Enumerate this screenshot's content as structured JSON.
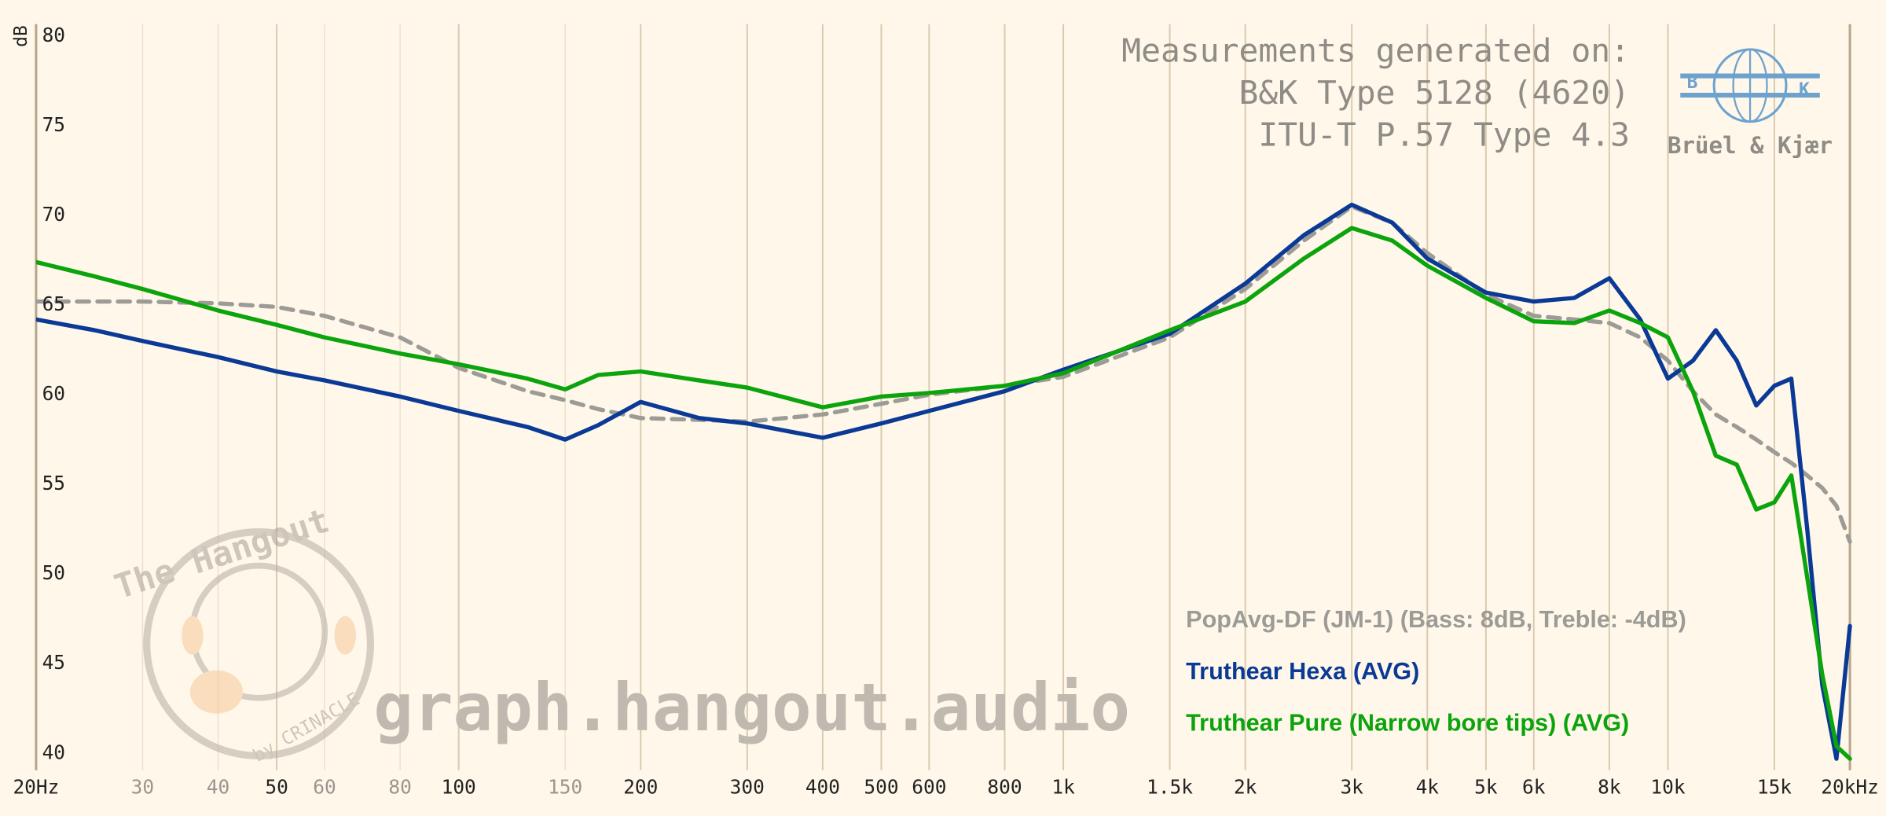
{
  "chart_data": {
    "type": "line",
    "y_label": "dB",
    "x_log": true,
    "xlim": [
      20,
      20000
    ],
    "ylim": [
      40,
      80
    ],
    "yticks": [
      40,
      45,
      50,
      55,
      60,
      65,
      70,
      75,
      80
    ],
    "xticks": [
      {
        "value": 20,
        "label": "20Hz"
      },
      50,
      100,
      200,
      300,
      400,
      500,
      600,
      800,
      {
        "value": 1000,
        "label": "1k"
      },
      {
        "value": 1500,
        "label": "1.5k"
      },
      {
        "value": 2000,
        "label": "2k"
      },
      {
        "value": 3000,
        "label": "3k"
      },
      {
        "value": 4000,
        "label": "4k"
      },
      {
        "value": 5000,
        "label": "5k"
      },
      {
        "value": 6000,
        "label": "6k"
      },
      {
        "value": 8000,
        "label": "8k"
      },
      {
        "value": 10000,
        "label": "10k"
      },
      {
        "value": 15000,
        "label": "15k"
      },
      {
        "value": 20000,
        "label": "20kHz"
      }
    ],
    "xticks_minor": [
      30,
      40,
      60,
      80,
      150
    ],
    "grid": true,
    "x": [
      20,
      25,
      30,
      40,
      50,
      60,
      80,
      100,
      130,
      150,
      170,
      200,
      250,
      300,
      400,
      500,
      600,
      800,
      1000,
      1500,
      2000,
      2500,
      3000,
      3500,
      4000,
      5000,
      6000,
      7000,
      8000,
      9000,
      10000,
      11000,
      12000,
      13000,
      14000,
      15000,
      16000,
      17000,
      18000,
      19000,
      20000
    ],
    "series": [
      {
        "name": "PopAvg-DF (JM-1) (Bass: 8dB, Treble: -4dB)",
        "color": "#9c9b96",
        "dashed": true,
        "values": [
          65.2,
          65.2,
          65.2,
          65.1,
          64.9,
          64.4,
          63.2,
          61.5,
          60.2,
          59.7,
          59.2,
          58.7,
          58.6,
          58.5,
          58.9,
          59.5,
          60.0,
          60.5,
          61.0,
          63.2,
          65.9,
          68.6,
          70.5,
          69.6,
          67.9,
          65.6,
          64.4,
          64.2,
          64.0,
          63.2,
          61.9,
          60.2,
          58.9,
          58.2,
          57.5,
          56.8,
          56.2,
          55.5,
          54.8,
          53.8,
          51.8
        ]
      },
      {
        "name": "Truthear Hexa (AVG)",
        "color": "#0b3a96",
        "values": [
          64.2,
          63.6,
          63.0,
          62.1,
          61.3,
          60.8,
          59.9,
          59.1,
          58.2,
          57.5,
          58.3,
          59.6,
          58.7,
          58.4,
          57.6,
          58.4,
          59.1,
          60.2,
          61.4,
          63.4,
          66.2,
          68.9,
          70.6,
          69.6,
          67.6,
          65.7,
          65.2,
          65.4,
          66.5,
          64.2,
          60.9,
          61.9,
          63.6,
          61.9,
          59.4,
          60.5,
          60.9,
          52.5,
          43.8,
          39.7,
          47.1
        ]
      },
      {
        "name": "Truthear Pure (Narrow bore tips) (AVG)",
        "color": "#0ca40c",
        "values": [
          67.4,
          66.6,
          65.9,
          64.7,
          63.9,
          63.2,
          62.3,
          61.7,
          60.9,
          60.3,
          61.1,
          61.3,
          60.8,
          60.4,
          59.3,
          59.9,
          60.1,
          60.5,
          61.2,
          63.6,
          65.2,
          67.6,
          69.3,
          68.6,
          67.2,
          65.4,
          64.1,
          64.0,
          64.7,
          64.0,
          63.2,
          60.2,
          56.6,
          56.1,
          53.6,
          54.0,
          55.5,
          49.8,
          44.4,
          40.4,
          39.7
        ]
      }
    ],
    "annotations": [
      "Measurements generated on:",
      "B&K Type 5128 (4620)",
      "ITU-T P.57 Type 4.3"
    ],
    "logo": {
      "left_letter": "B",
      "right_letter": "K",
      "name": "Brüel & Kjær"
    },
    "watermark": {
      "site": "graph.hangout.audio",
      "badge_title": "The Hangout",
      "badge_credit": "by CRINACLE"
    }
  }
}
